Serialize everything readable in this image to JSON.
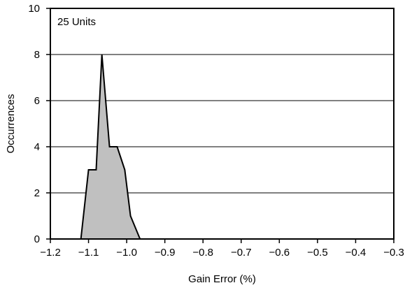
{
  "chart_data": {
    "type": "area",
    "title": "",
    "annotation": "25 Units",
    "xlabel": "Gain Error (%)",
    "ylabel": "Occurrences",
    "xlim": [
      -1.2,
      -0.3
    ],
    "ylim": [
      0,
      10
    ],
    "x_ticks": [
      -1.2,
      -1.1,
      -1.0,
      -0.9,
      -0.8,
      -0.7,
      -0.6,
      -0.5,
      -0.4,
      -0.3
    ],
    "x_tick_labels": [
      "−1.2",
      "−1.1",
      "−1.0",
      "−0.9",
      "−0.8",
      "−0.7",
      "−0.6",
      "−0.5",
      "−0.4",
      "−0.3"
    ],
    "y_ticks": [
      0,
      2,
      4,
      6,
      8,
      10
    ],
    "y_tick_labels": [
      "0",
      "2",
      "4",
      "6",
      "8",
      "10"
    ],
    "grid": "horizontal",
    "fill_color": "#c0c0c0",
    "line_color": "#000000",
    "series": [
      {
        "x": [
          -1.12,
          -1.1,
          -1.08,
          -1.065,
          -1.055,
          -1.045,
          -1.025,
          -1.015,
          -1.005,
          -0.99,
          -0.965
        ],
        "y": [
          0,
          3,
          3,
          8,
          6,
          4,
          4,
          3.5,
          3,
          1,
          0
        ]
      }
    ]
  }
}
